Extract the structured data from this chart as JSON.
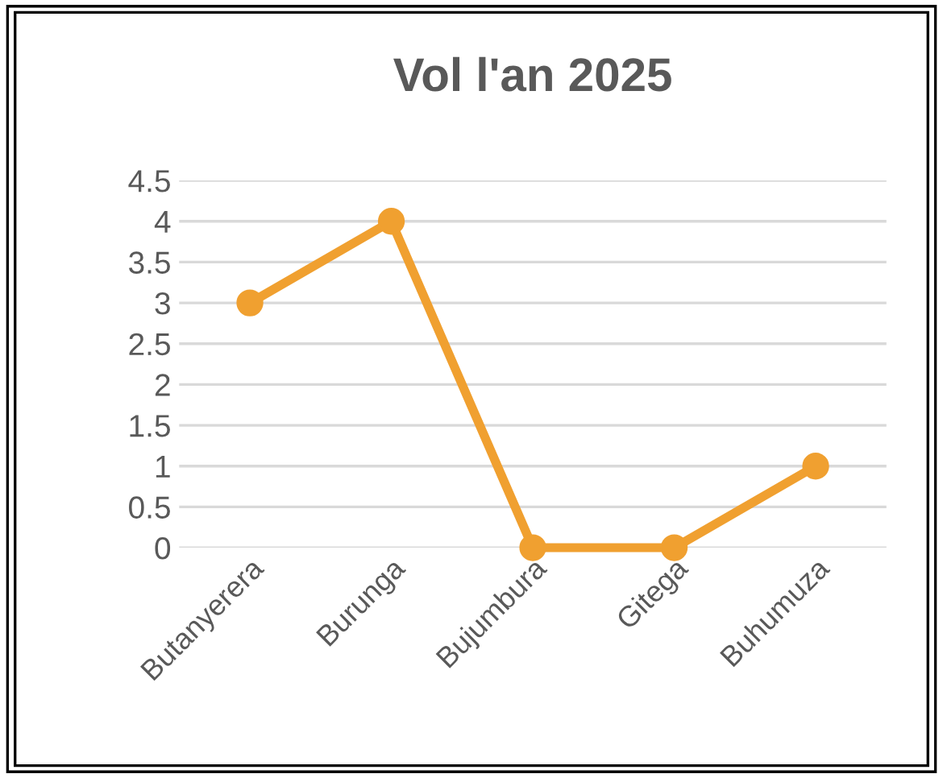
{
  "chart_data": {
    "type": "line",
    "title": "Vol l'an 2025",
    "categories": [
      "Butanyerera",
      "Burunga",
      "Bujumbura",
      "Gitega",
      "Buhumuza"
    ],
    "series": [
      {
        "color": "#f0a030",
        "values": [
          3,
          4,
          0,
          0,
          1
        ]
      }
    ],
    "ylim": [
      0,
      4.5
    ],
    "yticks": [
      0,
      0.5,
      1,
      1.5,
      2,
      2.5,
      3,
      3.5,
      4,
      4.5
    ],
    "grid": "y",
    "marker": "circle",
    "line_style": "solid"
  }
}
